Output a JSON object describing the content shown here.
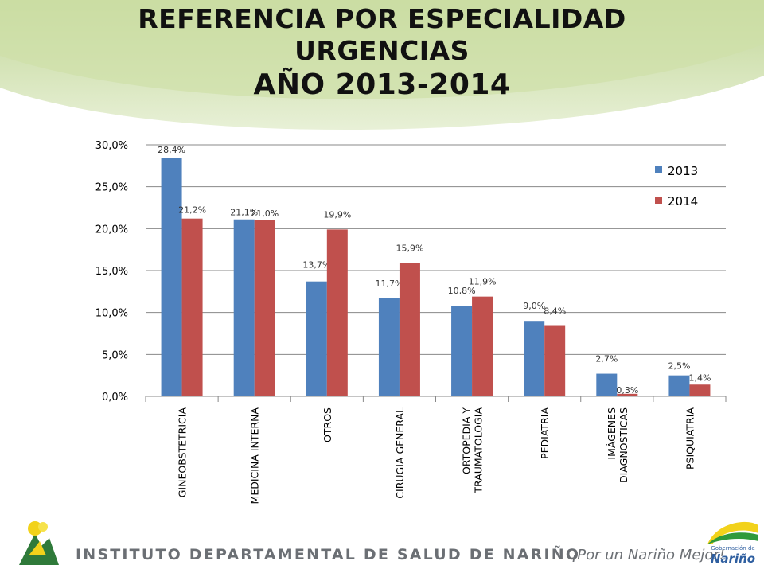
{
  "title": {
    "line1": "REFERENCIA POR ESPECIALIDAD",
    "line2": "URGENCIAS",
    "line3": "AÑO 2013-2014"
  },
  "colors": {
    "series_2013": "#4f81bd",
    "series_2014": "#c0504d",
    "gridline": "#888888",
    "swoosh": "#c4d89a"
  },
  "chart_data": {
    "type": "bar",
    "categories": [
      "GINEOBSTETRICIA",
      "MEDICINA INTERNA",
      "OTROS",
      "CIRUGIA GENERAL",
      "ORTOPEDIA Y TRAUMATOLOGIA",
      "PEDIATRIA",
      "IMÁGENES DIAGNOSTICAS",
      "PSIQUIATRIA"
    ],
    "category_lines": [
      [
        "GINEOBSTETRICIA"
      ],
      [
        "MEDICINA INTERNA"
      ],
      [
        "OTROS"
      ],
      [
        "CIRUGIA GENERAL"
      ],
      [
        "ORTOPEDIA Y",
        "TRAUMATOLOGIA"
      ],
      [
        "PEDIATRIA"
      ],
      [
        "IMÁGENES",
        "DIAGNOSTICAS"
      ],
      [
        "PSIQUIATRIA"
      ]
    ],
    "series": [
      {
        "name": "2013",
        "values": [
          28.4,
          21.1,
          13.7,
          11.7,
          10.8,
          9.0,
          2.7,
          2.5
        ],
        "labels": [
          "28,4%",
          "21,1%",
          "13,7%",
          "11,7%",
          "10,8%",
          "9,0%",
          "2,7%",
          "2,5%"
        ]
      },
      {
        "name": "2014",
        "values": [
          21.2,
          21.0,
          19.9,
          15.9,
          11.9,
          8.4,
          0.3,
          1.4
        ],
        "labels": [
          "21,2%",
          "21,0%",
          "19,9%",
          "15,9%",
          "11,9%",
          "8,4%",
          "0,3%",
          "1,4%"
        ]
      }
    ],
    "yticks": [
      "0,0%",
      "5,0%",
      "10,0%",
      "15,0%",
      "20,0%",
      "25,0%",
      "30,0%"
    ],
    "ylim": [
      0,
      30
    ],
    "grid": true,
    "legend_position": "top-right"
  },
  "footer": {
    "institution": "INSTITUTO DEPARTAMENTAL DE SALUD DE NARIÑO",
    "slogan": "¡Por un Nariño Mejor!",
    "logo_small": "Gobernación de",
    "logo_big": "Nariño"
  }
}
